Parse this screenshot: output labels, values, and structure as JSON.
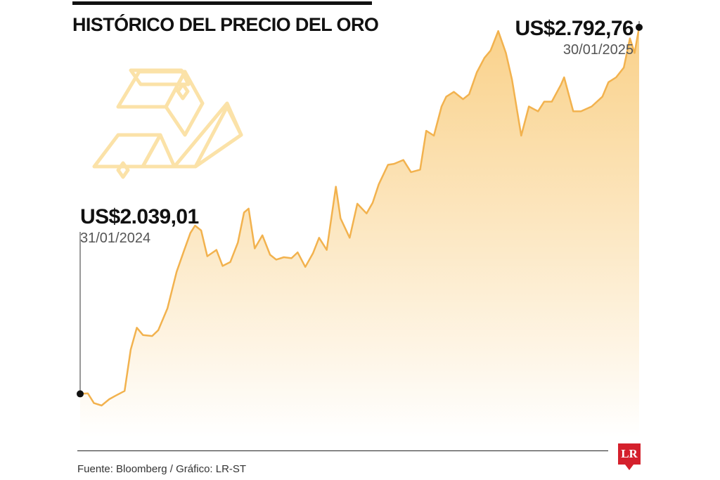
{
  "title": "HISTÓRICO DEL PRECIO DEL ORO",
  "source": "Fuente: Bloomberg / Gráfico: LR-ST",
  "logo_text": "LR",
  "icons": {
    "illustration": "gold-bars-icon",
    "logo": "la-republica-logo"
  },
  "colors": {
    "line": "#f2b24e",
    "fill_top": "#f9cf84",
    "fill_bottom": "#ffffff",
    "icon": "#fbe2a8",
    "logo": "#d4202c"
  },
  "annotations": {
    "start": {
      "value": "US$2.039,01",
      "date": "31/01/2024"
    },
    "end": {
      "value": "US$2.792,76",
      "date": "30/01/2025"
    }
  },
  "chart_data": {
    "type": "area",
    "title": "HISTÓRICO DEL PRECIO DEL ORO",
    "xlabel": "",
    "ylabel": "",
    "grid": false,
    "ylim": [
      1950,
      2820
    ],
    "xlim": [
      "2024-01-31",
      "2025-01-30"
    ],
    "x": [
      "2024-01-31",
      "2024-02-05",
      "2024-02-09",
      "2024-02-14",
      "2024-02-19",
      "2024-02-23",
      "2024-02-29",
      "2024-03-04",
      "2024-03-08",
      "2024-03-12",
      "2024-03-18",
      "2024-03-22",
      "2024-03-28",
      "2024-04-03",
      "2024-04-08",
      "2024-04-12",
      "2024-04-15",
      "2024-04-19",
      "2024-04-23",
      "2024-04-29",
      "2024-05-03",
      "2024-05-08",
      "2024-05-13",
      "2024-05-17",
      "2024-05-20",
      "2024-05-24",
      "2024-05-29",
      "2024-06-03",
      "2024-06-07",
      "2024-06-12",
      "2024-06-17",
      "2024-06-21",
      "2024-06-26",
      "2024-07-01",
      "2024-07-05",
      "2024-07-10",
      "2024-07-16",
      "2024-07-19",
      "2024-07-25",
      "2024-07-30",
      "2024-08-05",
      "2024-08-09",
      "2024-08-13",
      "2024-08-19",
      "2024-08-23",
      "2024-08-29",
      "2024-09-03",
      "2024-09-09",
      "2024-09-13",
      "2024-09-18",
      "2024-09-23",
      "2024-09-26",
      "2024-10-01",
      "2024-10-07",
      "2024-10-11",
      "2024-10-16",
      "2024-10-21",
      "2024-10-25",
      "2024-10-30",
      "2024-11-04",
      "2024-11-08",
      "2024-11-14",
      "2024-11-19",
      "2024-11-25",
      "2024-11-29",
      "2024-12-04",
      "2024-12-10",
      "2024-12-12",
      "2024-12-18",
      "2024-12-23",
      "2024-12-30",
      "2025-01-06",
      "2025-01-10",
      "2025-01-15",
      "2025-01-20",
      "2025-01-24",
      "2025-01-27",
      "2025-01-30"
    ],
    "series": [
      {
        "values": [
          2039.01,
          2040,
          2020,
          2015,
          2028,
          2035,
          2045,
          2130,
          2175,
          2160,
          2158,
          2170,
          2215,
          2290,
          2335,
          2370,
          2385,
          2375,
          2322,
          2335,
          2302,
          2310,
          2350,
          2412,
          2420,
          2338,
          2365,
          2325,
          2315,
          2320,
          2318,
          2330,
          2300,
          2328,
          2360,
          2335,
          2465,
          2400,
          2360,
          2430,
          2410,
          2432,
          2470,
          2510,
          2512,
          2520,
          2495,
          2500,
          2580,
          2570,
          2630,
          2650,
          2660,
          2645,
          2655,
          2700,
          2730,
          2745,
          2785,
          2740,
          2685,
          2570,
          2630,
          2620,
          2640,
          2640,
          2675,
          2690,
          2620,
          2620,
          2630,
          2650,
          2680,
          2690,
          2710,
          2770,
          2740,
          2792.76
        ]
      }
    ]
  }
}
